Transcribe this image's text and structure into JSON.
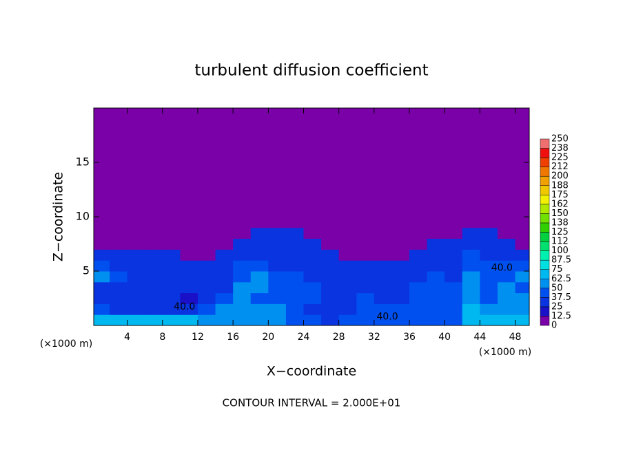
{
  "chart_data": {
    "type": "heatmap",
    "title": "turbulent diffusion coefficient",
    "x_label": "X−coordinate",
    "y_label": "Z−coordinate",
    "x_unit_left": "(×1000 m)",
    "x_unit_right": "(×1000 m)",
    "footnote": "CONTOUR INTERVAL = 2.000E+01",
    "xlim": [
      0.2,
      49.6
    ],
    "ylim": [
      0,
      20
    ],
    "xticks": [
      4,
      8,
      12,
      16,
      20,
      24,
      28,
      32,
      36,
      40,
      44,
      48
    ],
    "yticks": [
      5,
      10,
      15
    ],
    "x_edges": [
      0,
      2,
      4,
      6,
      8,
      10,
      12,
      14,
      16,
      18,
      20,
      22,
      24,
      26,
      28,
      30,
      32,
      34,
      36,
      38,
      40,
      42,
      44,
      46,
      48,
      50
    ],
    "y_edges": [
      0,
      1,
      2,
      3,
      4,
      5,
      6,
      7,
      8,
      9,
      20
    ],
    "z": [
      [
        65,
        65,
        65,
        65,
        65,
        65,
        60,
        60,
        55,
        50,
        55,
        45,
        40,
        35,
        40,
        40,
        40,
        40,
        40,
        40,
        45,
        70,
        65,
        70,
        65
      ],
      [
        40,
        35,
        30,
        25,
        25,
        30,
        40,
        50,
        55,
        50,
        50,
        45,
        35,
        30,
        35,
        38,
        38,
        38,
        38,
        38,
        40,
        65,
        55,
        60,
        55
      ],
      [
        35,
        30,
        30,
        35,
        25,
        20,
        35,
        40,
        50,
        45,
        45,
        45,
        38,
        30,
        35,
        38,
        35,
        35,
        38,
        38,
        40,
        60,
        40,
        55,
        50
      ],
      [
        30,
        30,
        25,
        30,
        30,
        25,
        30,
        35,
        50,
        50,
        40,
        45,
        40,
        35,
        30,
        35,
        35,
        35,
        38,
        38,
        40,
        55,
        45,
        55,
        45
      ],
      [
        55,
        40,
        30,
        30,
        25,
        30,
        30,
        35,
        45,
        50,
        38,
        40,
        35,
        30,
        30,
        33,
        30,
        30,
        35,
        38,
        35,
        50,
        40,
        45,
        60
      ],
      [
        38,
        35,
        30,
        30,
        25,
        30,
        30,
        30,
        40,
        45,
        35,
        35,
        30,
        30,
        35,
        33,
        30,
        28,
        30,
        35,
        35,
        45,
        40,
        40,
        40
      ],
      [
        35,
        35,
        30,
        30,
        28,
        0,
        0,
        30,
        35,
        35,
        35,
        35,
        30,
        30,
        0,
        0,
        0,
        0,
        30,
        35,
        35,
        40,
        35,
        35,
        35
      ],
      [
        0,
        0,
        0,
        0,
        0,
        0,
        0,
        0,
        30,
        30,
        30,
        30,
        30,
        0,
        0,
        0,
        0,
        0,
        0,
        30,
        30,
        30,
        30,
        30,
        0
      ],
      [
        0,
        0,
        0,
        0,
        0,
        0,
        0,
        0,
        0,
        30,
        30,
        30,
        0,
        0,
        0,
        0,
        0,
        0,
        0,
        0,
        0,
        30,
        30,
        0,
        0
      ],
      [
        0,
        0,
        0,
        0,
        0,
        0,
        0,
        0,
        0,
        0,
        0,
        0,
        0,
        0,
        0,
        0,
        0,
        0,
        0,
        0,
        0,
        0,
        0,
        0,
        0
      ]
    ],
    "contour_labels": [
      {
        "value": 40,
        "label": "40.0",
        "x": 33.5,
        "z": 0.8
      },
      {
        "value": 40,
        "label": "40.0",
        "x": 46.5,
        "z": 5.3
      },
      {
        "value": 40,
        "label": "40.0",
        "x": 10.5,
        "z": 1.7
      }
    ],
    "colorbar": {
      "levels": [
        0,
        12.5,
        25,
        37.5,
        50,
        62.5,
        75,
        87.5,
        100,
        {
          "value": 112.5,
          "label": "112"
        },
        125,
        {
          "value": 137.5,
          "label": "138"
        },
        150,
        {
          "value": 162.5,
          "label": "162"
        },
        175,
        {
          "value": 187.5,
          "label": "188"
        },
        200,
        {
          "value": 212.5,
          "label": "212"
        },
        225,
        {
          "value": 237.5,
          "label": "238"
        },
        250
      ],
      "colors": [
        "#7a00a8",
        "#1a10c8",
        "#0a34e0",
        "#0050f0",
        "#0090f0",
        "#00b8f0",
        "#00e0e0",
        "#00f0b0",
        "#00e070",
        "#00d040",
        "#30d000",
        "#70e000",
        "#b0e800",
        "#f0f000",
        "#f0c800",
        "#f0a000",
        "#f07800",
        "#f04000",
        "#f01010",
        "#f07070"
      ]
    }
  }
}
